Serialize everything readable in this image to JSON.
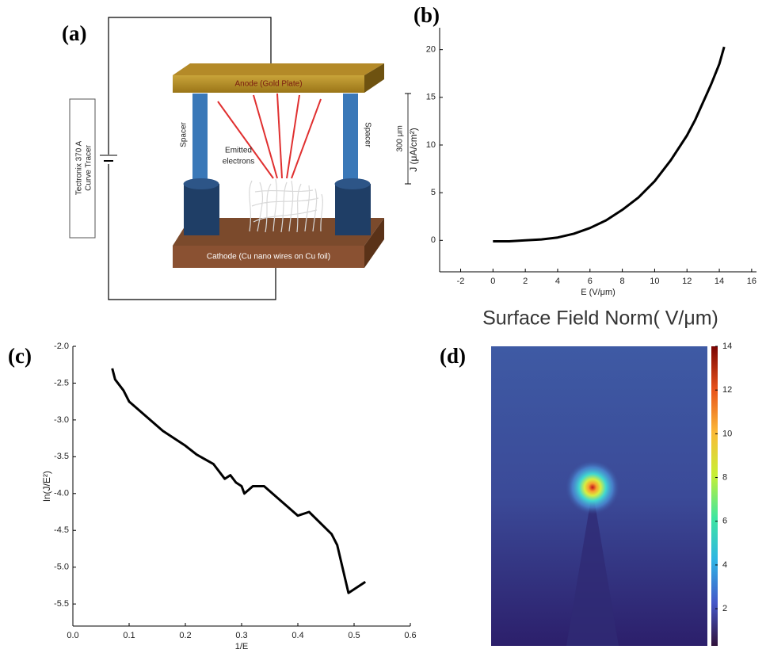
{
  "diagram": {
    "label": "(a)",
    "anode": "Anode (Gold Plate)",
    "cathode": "Cathode (Cu nano wires on Cu foil)",
    "spacer_left": "Spacer",
    "spacer_right": "Spacer",
    "electrons": [
      "Emitted",
      "electrons"
    ],
    "gap": "300 μm",
    "instrument": [
      "Tectronix 370 A",
      "Curve Tracer"
    ]
  },
  "chart_data": [
    {
      "label": "(b)",
      "type": "line",
      "xlabel": "E (V/μm)",
      "ylabel": "J (μA/cm²)",
      "color": "#000000",
      "x": [
        0,
        1,
        2,
        3,
        4,
        5,
        6,
        7,
        8,
        9,
        10,
        11,
        12,
        12.5,
        13,
        13.5,
        14,
        14.3
      ],
      "values": [
        -0.1,
        -0.1,
        0,
        0.1,
        0.3,
        0.7,
        1.3,
        2.1,
        3.2,
        4.5,
        6.2,
        8.4,
        11,
        12.6,
        14.5,
        16.4,
        18.5,
        20.3
      ],
      "xlim": [
        -3.3,
        16.3
      ],
      "xticks": [
        -2,
        0,
        2,
        4,
        6,
        8,
        10,
        12,
        14,
        16
      ],
      "ylim": [
        -3.3,
        22.3
      ],
      "yticks": [
        0,
        5,
        10,
        15,
        20
      ]
    },
    {
      "label": "(c)",
      "type": "line",
      "xlabel": "1/E",
      "ylabel": "ln(J/E²)",
      "color": "#000000",
      "x": [
        0.07,
        0.075,
        0.09,
        0.1,
        0.13,
        0.16,
        0.2,
        0.22,
        0.25,
        0.27,
        0.28,
        0.29,
        0.3,
        0.305,
        0.32,
        0.34,
        0.37,
        0.4,
        0.42,
        0.46,
        0.47,
        0.49,
        0.52
      ],
      "values": [
        -2.3,
        -2.45,
        -2.6,
        -2.75,
        -2.95,
        -3.15,
        -3.35,
        -3.47,
        -3.6,
        -3.8,
        -3.75,
        -3.85,
        -3.9,
        -4.0,
        -3.9,
        -3.9,
        -4.1,
        -4.3,
        -4.25,
        -4.55,
        -4.7,
        -5.35,
        -5.2
      ],
      "xlim": [
        0,
        0.6
      ],
      "xticks": [
        {
          "value": 0,
          "label": "0.0"
        },
        0.1,
        0.2,
        0.3,
        0.4,
        0.5,
        0.6
      ],
      "ylim": [
        -5.8,
        -2.0
      ],
      "yticks": [
        {
          "value": -2,
          "label": "-2.0"
        },
        -2.5,
        {
          "value": -3,
          "label": "-3.0"
        },
        -3.5,
        {
          "value": -4,
          "label": "-4.0"
        },
        -4.5,
        {
          "value": -5,
          "label": "-5.0"
        },
        -5.5
      ]
    },
    {
      "label": "(d)",
      "type": "heatmap",
      "title": "Surface Field Norm( V/μm)",
      "clim": [
        0.3,
        14
      ],
      "cticks": [
        2,
        4,
        6,
        8,
        10,
        12,
        14
      ],
      "colors": [
        "#30123b",
        "#4457c8",
        "#2fb4e5",
        "#3fe6a0",
        "#c7ef34",
        "#fbb938",
        "#e8521b",
        "#7a0403"
      ]
    }
  ]
}
